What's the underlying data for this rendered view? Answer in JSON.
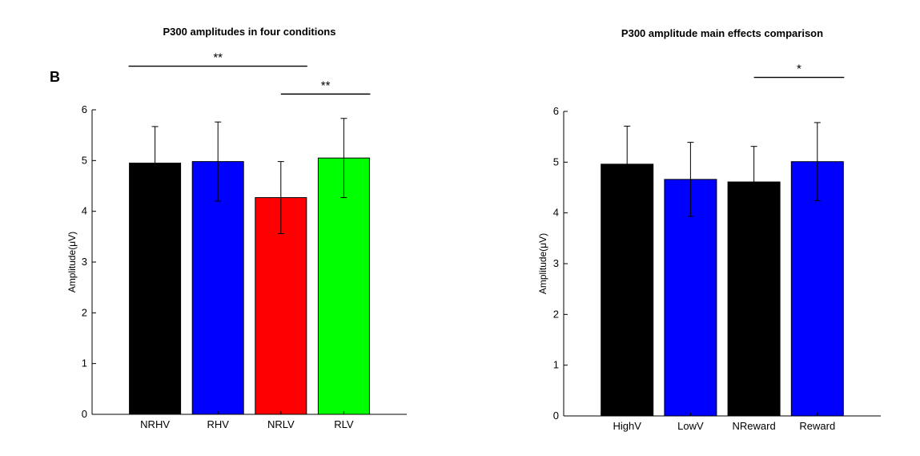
{
  "figure": {
    "panel_label": "B"
  },
  "chart_data": [
    {
      "type": "bar",
      "title": "P300 amplitudes in four conditions",
      "xlabel": "",
      "ylabel": "Amplitude(μV)",
      "ylim": [
        0,
        6
      ],
      "yticks": [
        0,
        1,
        2,
        3,
        4,
        5,
        6
      ],
      "categories": [
        "NRHV",
        "RHV",
        "NRLV",
        "RLV"
      ],
      "values": [
        4.95,
        4.98,
        4.27,
        5.05
      ],
      "errors": [
        0.72,
        0.78,
        0.71,
        0.78
      ],
      "colors": [
        "#000000",
        "#0000ff",
        "#ff0000",
        "#00ff00"
      ],
      "grid": false,
      "significance": [
        {
          "from": 0,
          "to": 2,
          "label": "**",
          "level": 6.86
        },
        {
          "from": 2,
          "to": 3,
          "label": "**",
          "level": 6.31
        }
      ]
    },
    {
      "type": "bar",
      "title": "P300 amplitude main effects comparison",
      "xlabel": "",
      "ylabel": "Amplitude(μV)",
      "ylim": [
        0,
        6
      ],
      "yticks": [
        0,
        1,
        2,
        3,
        4,
        5,
        6
      ],
      "categories": [
        "HighV",
        "LowV",
        "NReward",
        "Reward"
      ],
      "values": [
        4.96,
        4.66,
        4.61,
        5.01
      ],
      "errors": [
        0.75,
        0.73,
        0.7,
        0.77
      ],
      "colors": [
        "#000000",
        "#0000ff",
        "#000000",
        "#0000ff"
      ],
      "grid": false,
      "significance": [
        {
          "from": 2,
          "to": 3,
          "label": "*",
          "level": 6.67
        }
      ]
    }
  ]
}
